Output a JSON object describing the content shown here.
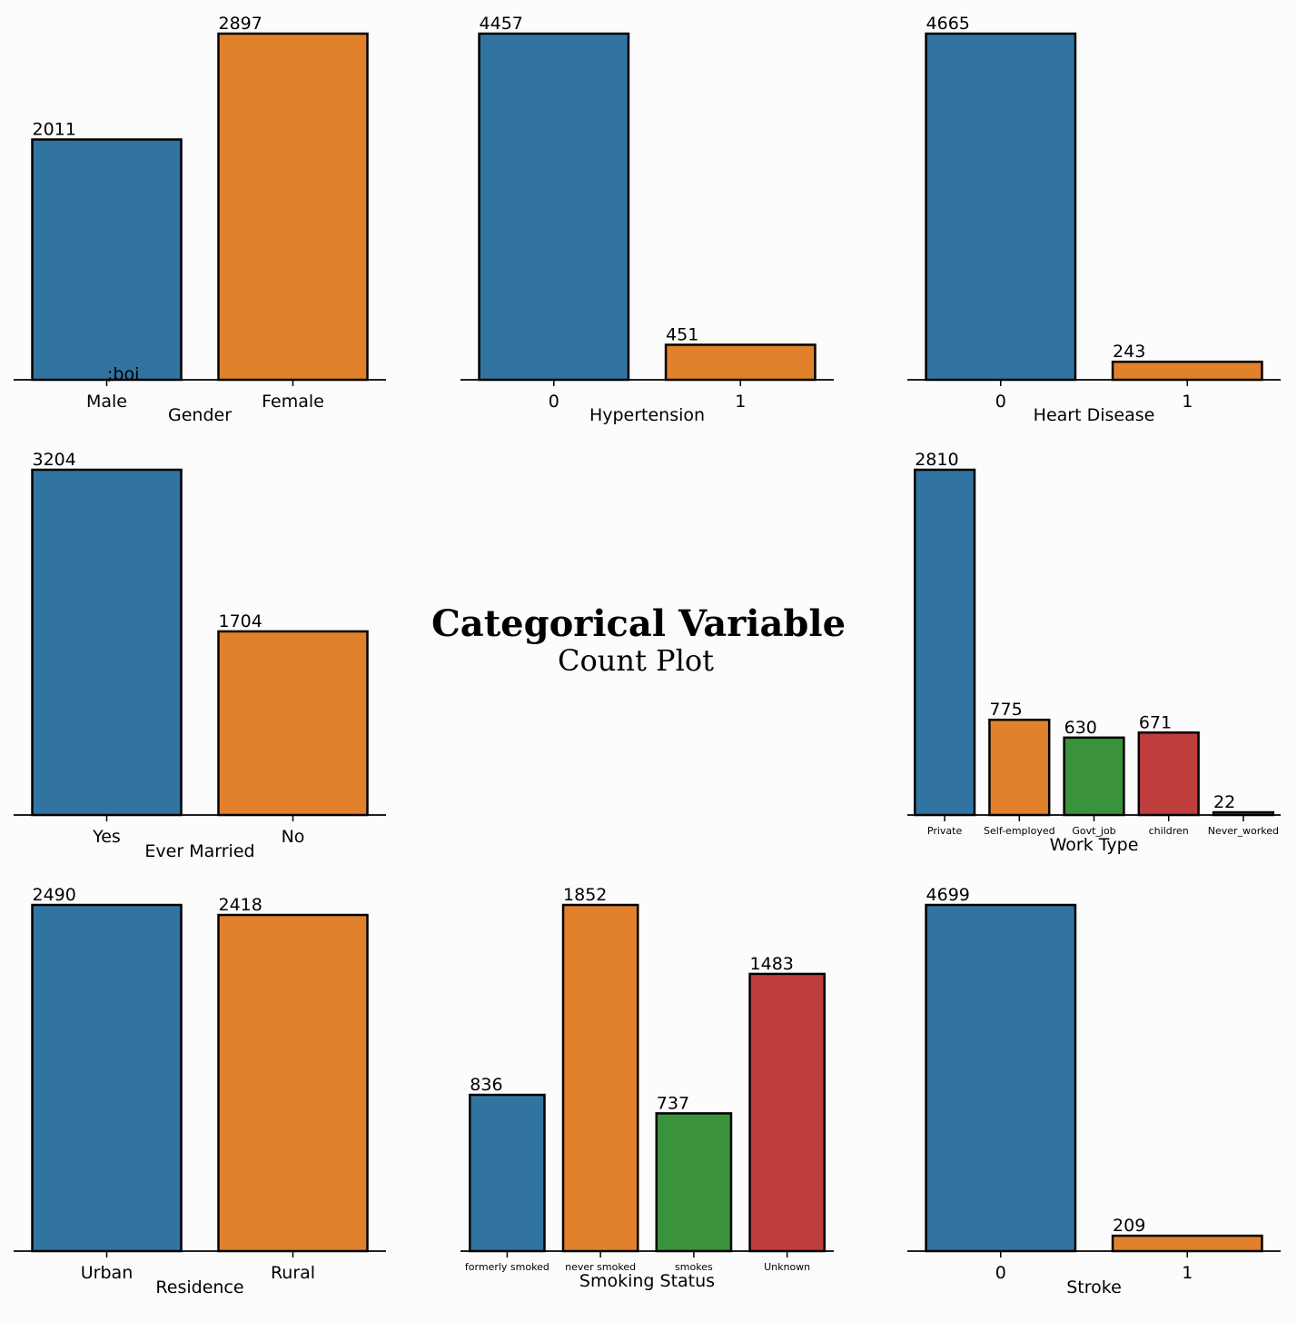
{
  "center_title": {
    "main": "Categorical Variable",
    "sub": "Count Plot"
  },
  "stray_text": ";boi",
  "palette": [
    "#3274a1",
    "#e1812c",
    "#3a923a",
    "#c03d3e"
  ],
  "chart_data": [
    {
      "type": "bar",
      "xlabel": "Gender",
      "categories": [
        "Male",
        "Female"
      ],
      "values": [
        2011,
        2897
      ]
    },
    {
      "type": "bar",
      "xlabel": "Hypertension",
      "categories": [
        "0",
        "1"
      ],
      "values": [
        4457,
        451
      ]
    },
    {
      "type": "bar",
      "xlabel": "Heart Disease",
      "categories": [
        "0",
        "1"
      ],
      "values": [
        4665,
        243
      ]
    },
    {
      "type": "bar",
      "xlabel": "Ever Married",
      "categories": [
        "Yes",
        "No"
      ],
      "values": [
        3204,
        1704
      ]
    },
    {
      "type": "bar",
      "xlabel": "Work Type",
      "categories": [
        "Private",
        "Self-employed",
        "Govt_job",
        "children",
        "Never_worked"
      ],
      "values": [
        2810,
        775,
        630,
        671,
        22
      ]
    },
    {
      "type": "bar",
      "xlabel": "Residence",
      "categories": [
        "Urban",
        "Rural"
      ],
      "values": [
        2490,
        2418
      ]
    },
    {
      "type": "bar",
      "xlabel": "Smoking Status",
      "categories": [
        "formerly smoked",
        "never smoked",
        "smokes",
        "Unknown"
      ],
      "values": [
        836,
        1852,
        737,
        1483
      ]
    },
    {
      "type": "bar",
      "xlabel": "Stroke",
      "categories": [
        "0",
        "1"
      ],
      "values": [
        4699,
        209
      ]
    }
  ]
}
